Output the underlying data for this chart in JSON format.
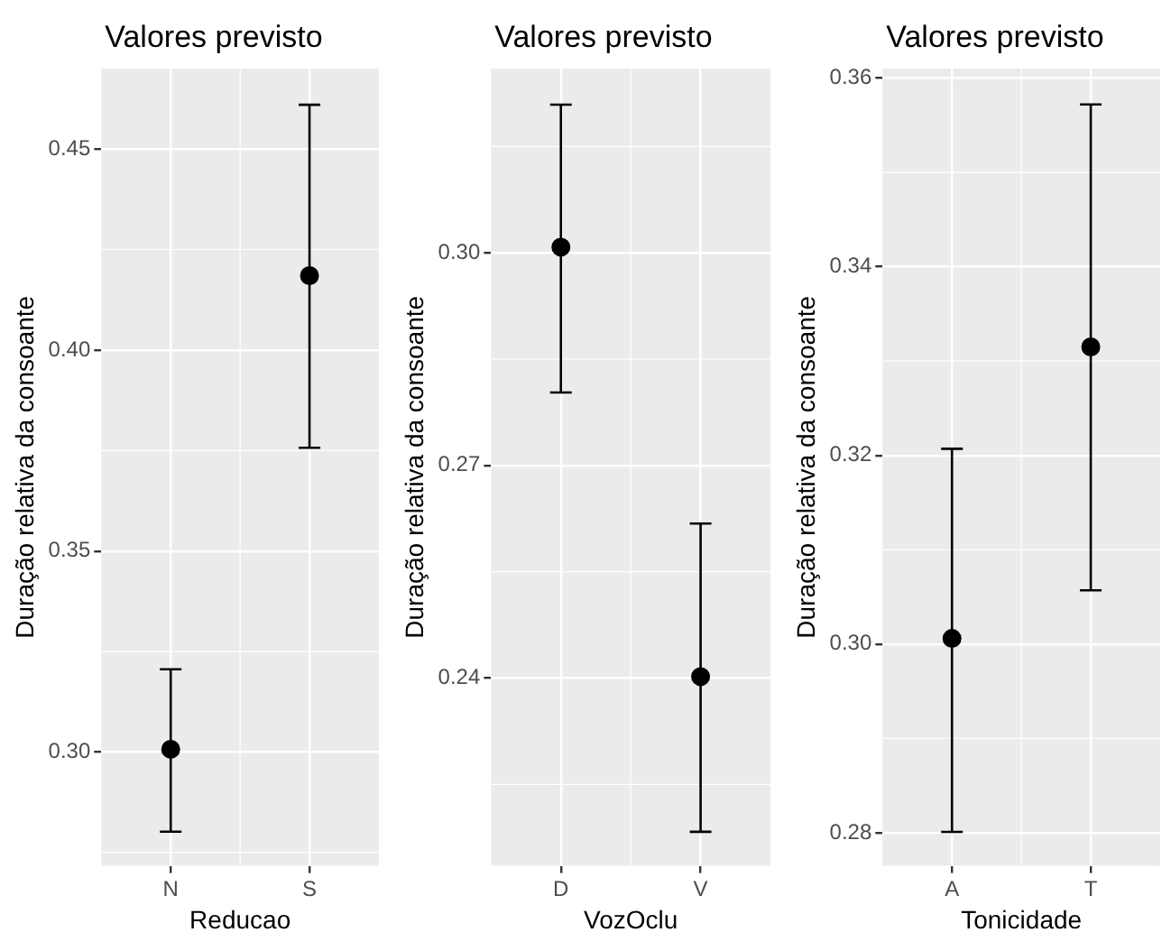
{
  "chart_data": [
    {
      "type": "scatter",
      "title": "Valores previsto",
      "xlabel": "Reducao",
      "ylabel": "Duração relativa da consoante",
      "categories": [
        "N",
        "S"
      ],
      "marker": "circle",
      "grid": true,
      "ylim": [
        0.2717,
        0.47
      ],
      "yticks": [
        {
          "value": 0.3,
          "label": "0.30"
        },
        {
          "value": 0.35,
          "label": "0.35"
        },
        {
          "value": 0.4,
          "label": "0.40"
        },
        {
          "value": 0.45,
          "label": "0.45"
        }
      ],
      "series": [
        {
          "color": "#000000",
          "values": [
            0.3007,
            0.4185
          ],
          "errors": [
            [
              0.2802,
              0.3206
            ],
            [
              0.3757,
              0.461
            ]
          ]
        }
      ]
    },
    {
      "type": "scatter",
      "title": "Valores previsto",
      "xlabel": "VozOclu",
      "ylabel": "Duração relativa da consoante",
      "categories": [
        "D",
        "V"
      ],
      "marker": "circle",
      "grid": true,
      "ylim": [
        0.2135,
        0.326
      ],
      "yticks": [
        {
          "value": 0.24,
          "label": "0.24"
        },
        {
          "value": 0.27,
          "label": "0.27"
        },
        {
          "value": 0.3,
          "label": "0.30"
        }
      ],
      "series": [
        {
          "color": "#000000",
          "values": [
            0.3008,
            0.2402
          ],
          "errors": [
            [
              0.2803,
              0.3209
            ],
            [
              0.2183,
              0.2618
            ]
          ]
        }
      ]
    },
    {
      "type": "scatter",
      "title": "Valores previsto",
      "xlabel": "Tonicidade",
      "ylabel": "Duração relativa da consoante",
      "categories": [
        "A",
        "T"
      ],
      "marker": "circle",
      "grid": true,
      "ylim": [
        0.2765,
        0.361
      ],
      "yticks": [
        {
          "value": 0.28,
          "label": "0.28"
        },
        {
          "value": 0.3,
          "label": "0.30"
        },
        {
          "value": 0.32,
          "label": "0.32"
        },
        {
          "value": 0.34,
          "label": "0.34"
        },
        {
          "value": 0.36,
          "label": "0.36"
        }
      ],
      "series": [
        {
          "color": "#000000",
          "values": [
            0.3006,
            0.3315
          ],
          "errors": [
            [
              0.2801,
              0.3207
            ],
            [
              0.3057,
              0.3572
            ]
          ]
        }
      ]
    }
  ]
}
